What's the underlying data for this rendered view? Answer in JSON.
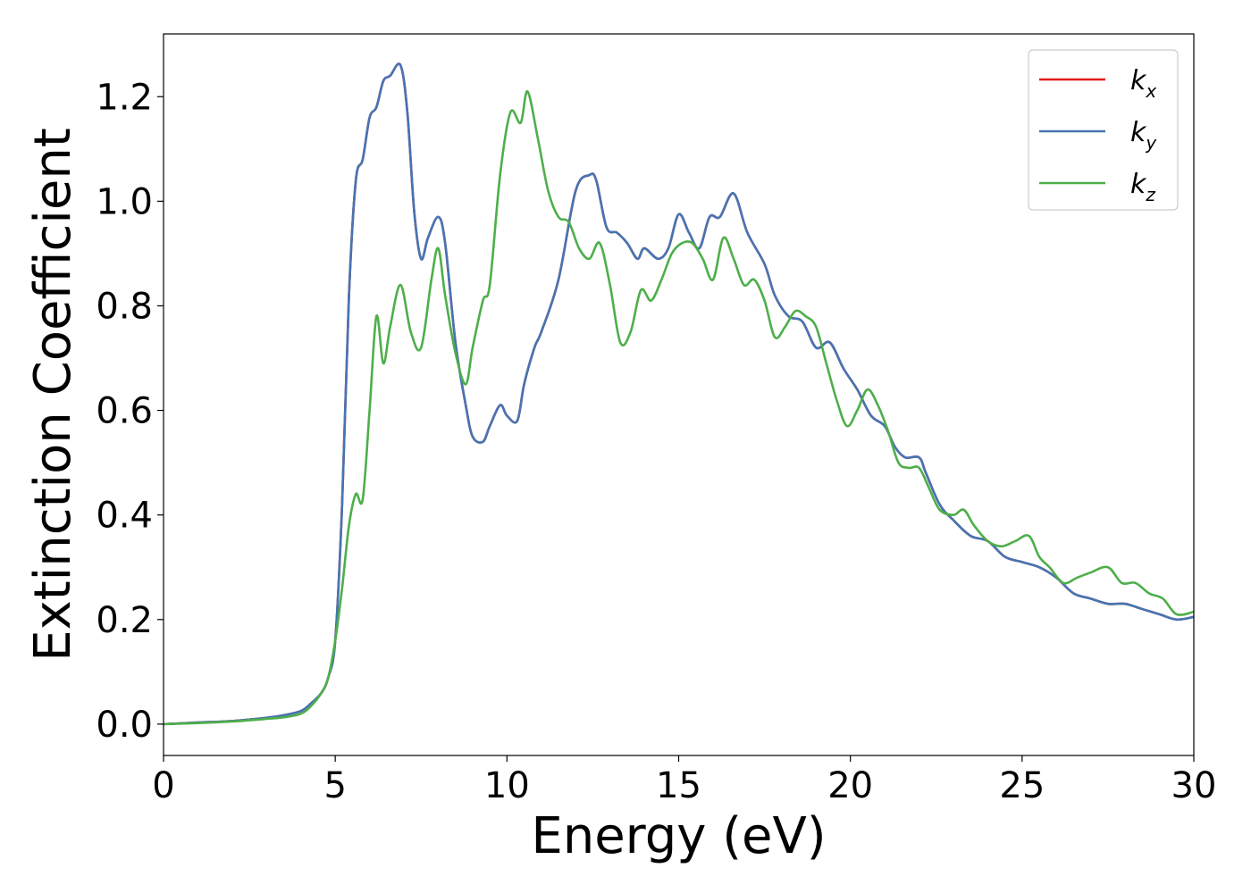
{
  "chart_data": {
    "type": "line",
    "xlabel": "Energy (eV)",
    "ylabel": "Extinction Coefficient",
    "xlim": [
      0,
      30
    ],
    "ylim": [
      -0.06,
      1.32
    ],
    "xticks": [
      0,
      5,
      10,
      15,
      20,
      25,
      30
    ],
    "yticks": [
      0.0,
      0.2,
      0.4,
      0.6,
      0.8,
      1.0,
      1.2
    ],
    "xtick_labels": [
      "0",
      "5",
      "10",
      "15",
      "20",
      "25",
      "30"
    ],
    "ytick_labels": [
      "0.0",
      "0.2",
      "0.4",
      "0.6",
      "0.8",
      "1.0",
      "1.2"
    ],
    "grid": false,
    "legend_position": "top-right",
    "legend": [
      {
        "symbol": "k",
        "subscript": "x",
        "color": "#e31a1c"
      },
      {
        "symbol": "k",
        "subscript": "y",
        "color": "#4575b4"
      },
      {
        "symbol": "k",
        "subscript": "z",
        "color": "#4daf4a"
      }
    ],
    "series": [
      {
        "key": "kx",
        "color": "#e31a1c",
        "x": [
          0,
          1,
          2,
          3,
          3.5,
          4,
          4.3,
          4.6,
          4.8,
          5.0,
          5.2,
          5.4,
          5.6,
          5.8,
          6.0,
          6.2,
          6.4,
          6.6,
          6.9,
          7.1,
          7.3,
          7.5,
          7.7,
          8.0,
          8.2,
          8.5,
          8.8,
          9.0,
          9.3,
          9.5,
          9.8,
          10.0,
          10.3,
          10.5,
          10.8,
          11.0,
          11.5,
          12.0,
          12.4,
          12.6,
          12.9,
          13.2,
          13.5,
          13.8,
          14.0,
          14.4,
          14.7,
          15.0,
          15.3,
          15.6,
          15.9,
          16.2,
          16.6,
          17.0,
          17.5,
          17.8,
          18.2,
          18.6,
          19.0,
          19.4,
          19.8,
          20.2,
          20.6,
          21.0,
          21.3,
          21.6,
          22.0,
          22.2,
          22.6,
          23.0,
          23.5,
          24.0,
          24.5,
          25.0,
          25.5,
          26.0,
          26.5,
          27.0,
          27.5,
          28.0,
          28.5,
          29.0,
          29.5,
          30.0
        ],
        "y": [
          0.0,
          0.003,
          0.006,
          0.012,
          0.017,
          0.025,
          0.04,
          0.06,
          0.09,
          0.16,
          0.42,
          0.82,
          1.04,
          1.08,
          1.16,
          1.18,
          1.23,
          1.24,
          1.26,
          1.17,
          0.98,
          0.89,
          0.93,
          0.97,
          0.92,
          0.73,
          0.61,
          0.55,
          0.54,
          0.57,
          0.61,
          0.59,
          0.58,
          0.65,
          0.72,
          0.75,
          0.85,
          1.02,
          1.05,
          1.04,
          0.95,
          0.94,
          0.92,
          0.89,
          0.91,
          0.89,
          0.91,
          0.975,
          0.94,
          0.91,
          0.97,
          0.97,
          1.015,
          0.94,
          0.88,
          0.82,
          0.78,
          0.77,
          0.72,
          0.73,
          0.68,
          0.64,
          0.59,
          0.57,
          0.53,
          0.51,
          0.51,
          0.48,
          0.42,
          0.39,
          0.36,
          0.35,
          0.32,
          0.31,
          0.3,
          0.28,
          0.25,
          0.24,
          0.23,
          0.23,
          0.22,
          0.21,
          0.2,
          0.205
        ]
      },
      {
        "key": "ky",
        "color": "#4575b4",
        "x": [
          0,
          1,
          2,
          3,
          3.5,
          4,
          4.3,
          4.6,
          4.8,
          5.0,
          5.2,
          5.4,
          5.6,
          5.8,
          6.0,
          6.2,
          6.4,
          6.6,
          6.9,
          7.1,
          7.3,
          7.5,
          7.7,
          8.0,
          8.2,
          8.5,
          8.8,
          9.0,
          9.3,
          9.5,
          9.8,
          10.0,
          10.3,
          10.5,
          10.8,
          11.0,
          11.5,
          12.0,
          12.4,
          12.6,
          12.9,
          13.2,
          13.5,
          13.8,
          14.0,
          14.4,
          14.7,
          15.0,
          15.3,
          15.6,
          15.9,
          16.2,
          16.6,
          17.0,
          17.5,
          17.8,
          18.2,
          18.6,
          19.0,
          19.4,
          19.8,
          20.2,
          20.6,
          21.0,
          21.3,
          21.6,
          22.0,
          22.2,
          22.6,
          23.0,
          23.5,
          24.0,
          24.5,
          25.0,
          25.5,
          26.0,
          26.5,
          27.0,
          27.5,
          28.0,
          28.5,
          29.0,
          29.5,
          30.0
        ],
        "y": [
          0.0,
          0.003,
          0.006,
          0.012,
          0.017,
          0.025,
          0.04,
          0.06,
          0.09,
          0.16,
          0.42,
          0.82,
          1.04,
          1.08,
          1.16,
          1.18,
          1.23,
          1.24,
          1.26,
          1.17,
          0.98,
          0.89,
          0.93,
          0.97,
          0.92,
          0.73,
          0.61,
          0.55,
          0.54,
          0.57,
          0.61,
          0.59,
          0.58,
          0.65,
          0.72,
          0.75,
          0.85,
          1.02,
          1.05,
          1.04,
          0.95,
          0.94,
          0.92,
          0.89,
          0.91,
          0.89,
          0.91,
          0.975,
          0.94,
          0.91,
          0.97,
          0.97,
          1.015,
          0.94,
          0.88,
          0.82,
          0.78,
          0.77,
          0.72,
          0.73,
          0.68,
          0.64,
          0.59,
          0.57,
          0.53,
          0.51,
          0.51,
          0.48,
          0.42,
          0.39,
          0.36,
          0.35,
          0.32,
          0.31,
          0.3,
          0.28,
          0.25,
          0.24,
          0.23,
          0.23,
          0.22,
          0.21,
          0.2,
          0.205
        ]
      },
      {
        "key": "kz",
        "color": "#4daf4a",
        "x": [
          0,
          1,
          2,
          3,
          3.5,
          4,
          4.3,
          4.6,
          4.8,
          5.0,
          5.2,
          5.4,
          5.6,
          5.8,
          6.0,
          6.2,
          6.4,
          6.6,
          6.9,
          7.2,
          7.5,
          7.8,
          8.0,
          8.2,
          8.5,
          8.8,
          9.0,
          9.3,
          9.5,
          9.8,
          10.1,
          10.4,
          10.6,
          10.9,
          11.2,
          11.5,
          11.8,
          12.1,
          12.4,
          12.7,
          13.0,
          13.3,
          13.6,
          13.9,
          14.2,
          14.5,
          14.8,
          15.1,
          15.4,
          15.7,
          16.0,
          16.3,
          16.6,
          16.9,
          17.2,
          17.5,
          17.8,
          18.1,
          18.4,
          18.7,
          19.0,
          19.3,
          19.6,
          19.9,
          20.2,
          20.5,
          20.8,
          21.1,
          21.4,
          21.7,
          22.0,
          22.3,
          22.6,
          23.0,
          23.3,
          23.6,
          24.0,
          24.4,
          24.8,
          25.2,
          25.5,
          25.8,
          26.2,
          26.6,
          27.0,
          27.5,
          27.9,
          28.3,
          28.7,
          29.1,
          29.5,
          30.0
        ],
        "y": [
          0.0,
          0.002,
          0.005,
          0.01,
          0.013,
          0.02,
          0.035,
          0.06,
          0.09,
          0.16,
          0.26,
          0.38,
          0.44,
          0.43,
          0.6,
          0.78,
          0.69,
          0.76,
          0.84,
          0.75,
          0.72,
          0.85,
          0.91,
          0.82,
          0.71,
          0.65,
          0.72,
          0.81,
          0.84,
          1.05,
          1.17,
          1.15,
          1.21,
          1.12,
          1.02,
          0.97,
          0.96,
          0.91,
          0.89,
          0.92,
          0.84,
          0.73,
          0.75,
          0.83,
          0.81,
          0.85,
          0.9,
          0.92,
          0.92,
          0.89,
          0.85,
          0.93,
          0.89,
          0.84,
          0.85,
          0.81,
          0.74,
          0.76,
          0.79,
          0.78,
          0.76,
          0.69,
          0.62,
          0.57,
          0.6,
          0.64,
          0.61,
          0.56,
          0.5,
          0.49,
          0.49,
          0.45,
          0.41,
          0.4,
          0.41,
          0.38,
          0.35,
          0.34,
          0.35,
          0.36,
          0.32,
          0.3,
          0.27,
          0.28,
          0.29,
          0.3,
          0.27,
          0.27,
          0.25,
          0.24,
          0.21,
          0.215
        ]
      }
    ]
  }
}
